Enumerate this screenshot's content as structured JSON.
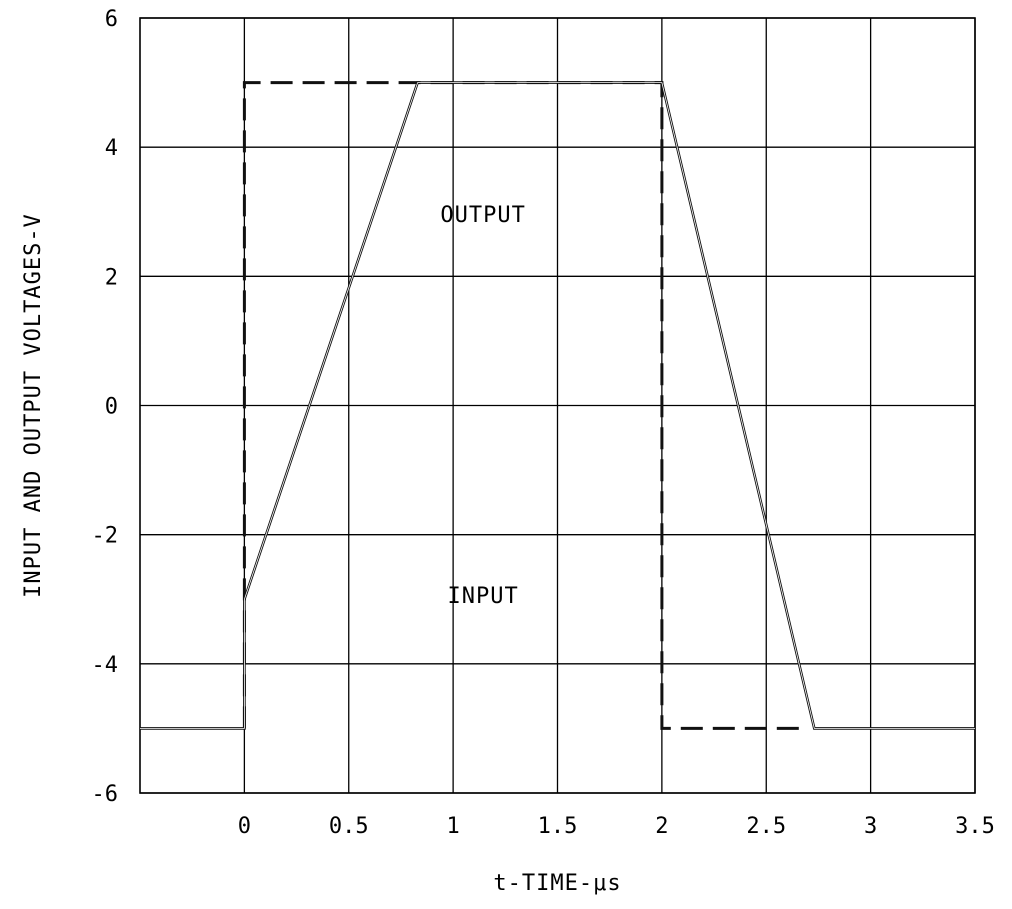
{
  "chart_data": {
    "type": "line",
    "title": "",
    "xlabel": "t-TIME-μs",
    "ylabel": "INPUT AND OUTPUT VOLTAGES-V",
    "xlim": [
      -0.5,
      3.5
    ],
    "ylim": [
      -6,
      6
    ],
    "x_ticks": [
      0,
      0.5,
      1,
      1.5,
      2,
      2.5,
      3,
      3.5
    ],
    "x_tick_labels": [
      "0",
      "0.5",
      "1",
      "1.5",
      "2",
      "2.5",
      "3",
      "3.5"
    ],
    "y_ticks": [
      -6,
      -4,
      -2,
      0,
      2,
      4,
      6
    ],
    "y_tick_labels": [
      "-6",
      "-4",
      "-2",
      "0",
      "2",
      "4",
      "6"
    ],
    "grid": true,
    "series": [
      {
        "style": "dashed",
        "x": [
          0,
          0,
          2,
          2,
          2.7
        ],
        "y": [
          -5,
          5,
          5,
          -5,
          -5
        ]
      },
      {
        "style": "solid",
        "x": [
          -0.5,
          0,
          0,
          0.83,
          2,
          2.73,
          3.5
        ],
        "y": [
          -5,
          -5,
          -3,
          5,
          5,
          -5,
          -5
        ]
      }
    ],
    "annotations": [
      {
        "text": "OUTPUT",
        "x": 1.0,
        "y": 3.0
      },
      {
        "text": "INPUT",
        "x": 1.0,
        "y": -2.9
      }
    ]
  }
}
